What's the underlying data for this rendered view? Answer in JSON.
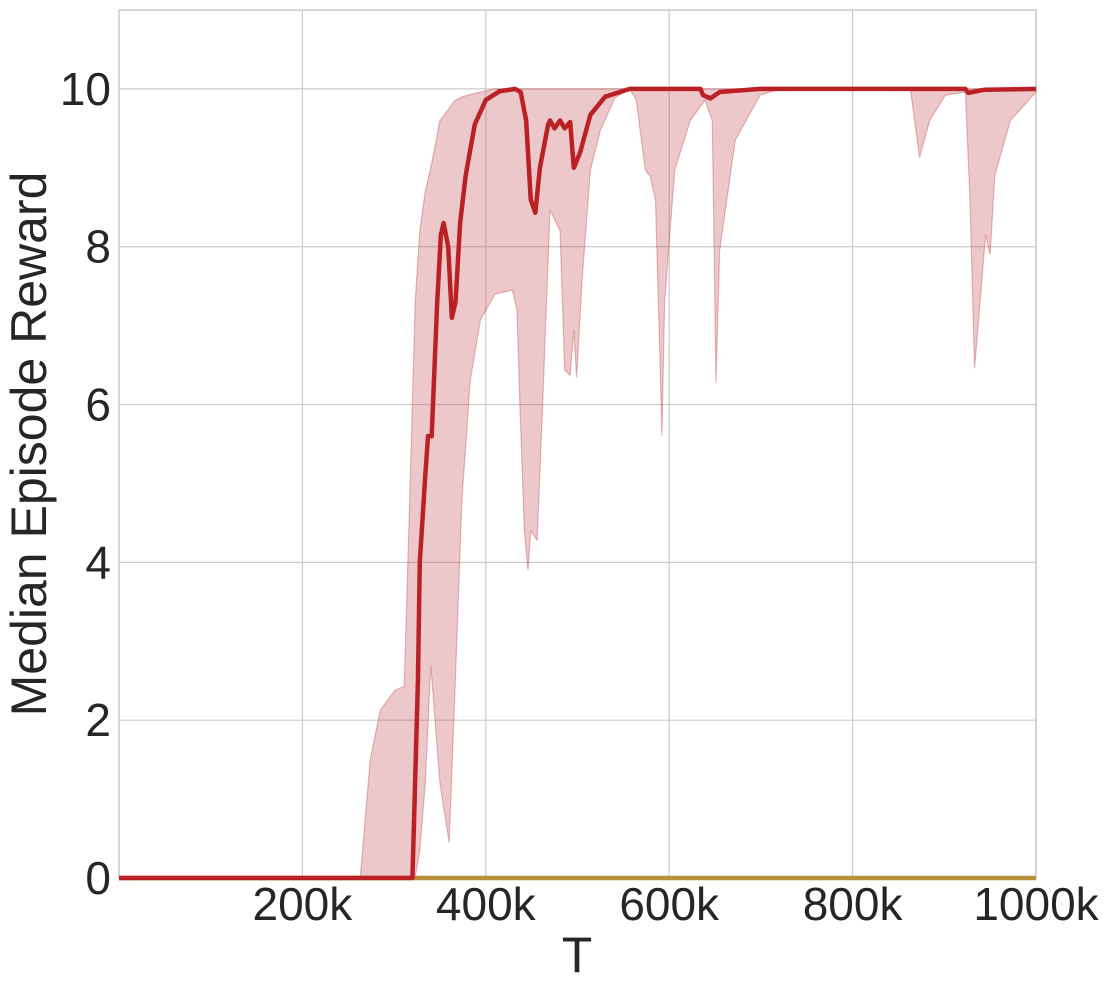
{
  "chart_data": {
    "type": "line",
    "xlabel": "T",
    "ylabel": "Median Episode Reward",
    "xlim": [
      0,
      1000000
    ],
    "ylim": [
      0,
      11
    ],
    "xticks": [
      {
        "value": 200000,
        "label": "200k"
      },
      {
        "value": 400000,
        "label": "400k"
      },
      {
        "value": 600000,
        "label": "600k"
      },
      {
        "value": 800000,
        "label": "800k"
      },
      {
        "value": 1000000,
        "label": "1000k"
      }
    ],
    "yticks": [
      0,
      2,
      4,
      6,
      8,
      10
    ],
    "grid": true,
    "band": {
      "color": "#c0393f",
      "x": [
        0,
        263000,
        274000,
        285000,
        301000,
        311000,
        317000,
        323000,
        328000,
        334000,
        340000,
        350000,
        360000,
        366000,
        374000,
        383000,
        394000,
        410000,
        429000,
        434000,
        437000,
        442000,
        446000,
        449000,
        456000,
        462000,
        470000,
        481000,
        486000,
        492000,
        496000,
        499000,
        505000,
        514000,
        525000,
        541000,
        557000,
        564000,
        574000,
        579000,
        585000,
        590000,
        592000,
        595000,
        606000,
        623000,
        639000,
        647000,
        651000,
        655000,
        672000,
        699000,
        721000,
        863000,
        873000,
        884000,
        901000,
        923000,
        928000,
        933000,
        939000,
        945000,
        950000,
        955000,
        972000,
        1000000
      ],
      "lower": [
        0,
        0,
        0,
        0,
        0,
        0,
        0,
        0,
        0.35,
        1.2,
        2.7,
        1.2,
        0.45,
        2.25,
        4.8,
        6.3,
        7.07,
        7.4,
        7.45,
        7.2,
        6.06,
        4.4,
        3.9,
        4.4,
        4.28,
        6.0,
        8.47,
        8.2,
        6.44,
        6.37,
        6.95,
        6.34,
        7.58,
        8.97,
        9.48,
        9.89,
        10,
        9.86,
        8.97,
        8.9,
        8.6,
        6.56,
        5.6,
        7.3,
        8.97,
        9.6,
        9.86,
        9.6,
        6.27,
        7.95,
        9.35,
        9.92,
        10,
        10,
        9.13,
        9.6,
        9.92,
        9.96,
        8.6,
        6.46,
        7.3,
        8.15,
        7.9,
        8.9,
        9.6,
        9.96
      ],
      "upper": [
        0,
        0,
        1.5,
        2.13,
        2.38,
        2.43,
        4.8,
        7.3,
        8.2,
        8.7,
        9.0,
        9.6,
        9.75,
        9.85,
        9.9,
        9.93,
        9.96,
        10,
        10,
        10,
        10,
        10,
        10,
        10,
        10,
        10,
        10,
        10,
        10,
        10,
        10,
        10,
        10,
        10,
        10,
        10,
        10,
        10,
        10,
        10,
        10,
        10,
        10,
        10,
        10,
        10,
        10,
        10,
        10,
        10,
        10,
        10,
        10,
        10,
        10,
        10,
        10,
        10,
        10,
        10,
        10,
        10,
        10,
        10,
        10,
        10
      ]
    },
    "series": [
      {
        "color": "#b8903c",
        "x": [
          0,
          1000000
        ],
        "values": [
          0,
          0
        ]
      },
      {
        "color": "#bb2025",
        "x": [
          0,
          320000,
          326000,
          328000,
          334000,
          337000,
          341000,
          347000,
          351000,
          354000,
          359000,
          363000,
          367000,
          372000,
          378000,
          388000,
          400000,
          415000,
          432000,
          438000,
          444000,
          449000,
          454000,
          459000,
          468000,
          470000,
          475000,
          481000,
          486000,
          492000,
          496000,
          503000,
          514000,
          530000,
          557000,
          634000,
          637000,
          645000,
          655000,
          699000,
          923000,
          926000,
          944000,
          1000000
        ],
        "values": [
          0,
          0,
          2.5,
          4.0,
          5.1,
          5.6,
          5.6,
          7.3,
          8.15,
          8.3,
          8.0,
          7.1,
          7.3,
          8.3,
          8.9,
          9.55,
          9.86,
          9.97,
          10,
          9.96,
          9.6,
          8.6,
          8.43,
          9.0,
          9.55,
          9.6,
          9.5,
          9.6,
          9.5,
          9.58,
          9.0,
          9.2,
          9.67,
          9.9,
          10,
          10,
          9.92,
          9.88,
          9.96,
          10,
          10,
          9.95,
          9.99,
          10
        ]
      }
    ]
  }
}
